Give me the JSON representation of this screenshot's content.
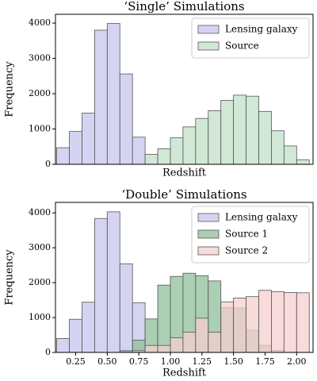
{
  "chart_data": [
    {
      "type": "histogram",
      "title": "‘Single’ Simulations",
      "x_label": "Redshift",
      "y_label": "Frequency",
      "bins": [
        0.1,
        0.2,
        0.3,
        0.4,
        0.5,
        0.6,
        0.7,
        0.8,
        0.9,
        1.0,
        1.1,
        1.2,
        1.3,
        1.4,
        1.5,
        1.6,
        1.7,
        1.8,
        1.9,
        2.0,
        2.1
      ],
      "series": [
        {
          "name": "Lensing galaxy",
          "color": "#c6c6ee",
          "values": [
            470,
            930,
            1450,
            3800,
            3990,
            2560,
            770,
            0,
            0,
            0,
            0,
            0,
            0,
            0,
            0,
            0,
            0,
            0,
            0,
            0
          ]
        },
        {
          "name": "Source",
          "color": "#c2e0c8",
          "values": [
            0,
            0,
            0,
            0,
            0,
            0,
            0,
            280,
            440,
            750,
            1060,
            1300,
            1520,
            1810,
            1960,
            1930,
            1500,
            950,
            520,
            130
          ]
        }
      ],
      "xlim": [
        0.09,
        2.13
      ],
      "ylim": [
        0,
        4250
      ],
      "yticks": [
        0,
        1000,
        2000,
        3000,
        4000
      ],
      "legend": "upper right"
    },
    {
      "type": "histogram",
      "title": "‘Double’ Simulations",
      "x_label": "Redshift",
      "y_label": "Frequency",
      "bins": [
        0.1,
        0.2,
        0.3,
        0.4,
        0.5,
        0.6,
        0.7,
        0.8,
        0.9,
        1.0,
        1.1,
        1.2,
        1.3,
        1.4,
        1.5,
        1.6,
        1.7,
        1.8,
        1.9,
        2.0,
        2.1
      ],
      "series": [
        {
          "name": "Lensing galaxy",
          "color": "#c6c6ee",
          "values": [
            400,
            950,
            1440,
            3840,
            4030,
            2540,
            1420,
            0,
            0,
            0,
            0,
            0,
            0,
            0,
            0,
            0,
            0,
            0,
            0,
            0
          ]
        },
        {
          "name": "Source 1",
          "color": "#8fbf9a",
          "values": [
            0,
            0,
            0,
            0,
            0,
            50,
            350,
            960,
            1930,
            2180,
            2270,
            2200,
            2050,
            1280,
            1270,
            640,
            200,
            60,
            0,
            0
          ]
        },
        {
          "name": "Source 2",
          "color": "#f6cfcf",
          "values": [
            0,
            0,
            0,
            0,
            0,
            0,
            50,
            200,
            200,
            420,
            580,
            980,
            580,
            1450,
            1560,
            1600,
            1780,
            1740,
            1720,
            1710
          ]
        }
      ],
      "xlim": [
        0.09,
        2.13
      ],
      "ylim": [
        0,
        4300
      ],
      "yticks": [
        0,
        1000,
        2000,
        3000,
        4000
      ],
      "xticks": [
        {
          "value": 0.25,
          "label": "0.25"
        },
        {
          "value": 0.5,
          "label": "0.50"
        },
        {
          "value": 0.75,
          "label": "0.75"
        },
        {
          "value": 1.0,
          "label": "1.00"
        },
        {
          "value": 1.25,
          "label": "1.25"
        },
        {
          "value": 1.5,
          "label": "1.50"
        },
        {
          "value": 1.75,
          "label": "1.75"
        },
        {
          "value": 2.0,
          "label": "2.00"
        }
      ],
      "legend": "upper right"
    }
  ]
}
